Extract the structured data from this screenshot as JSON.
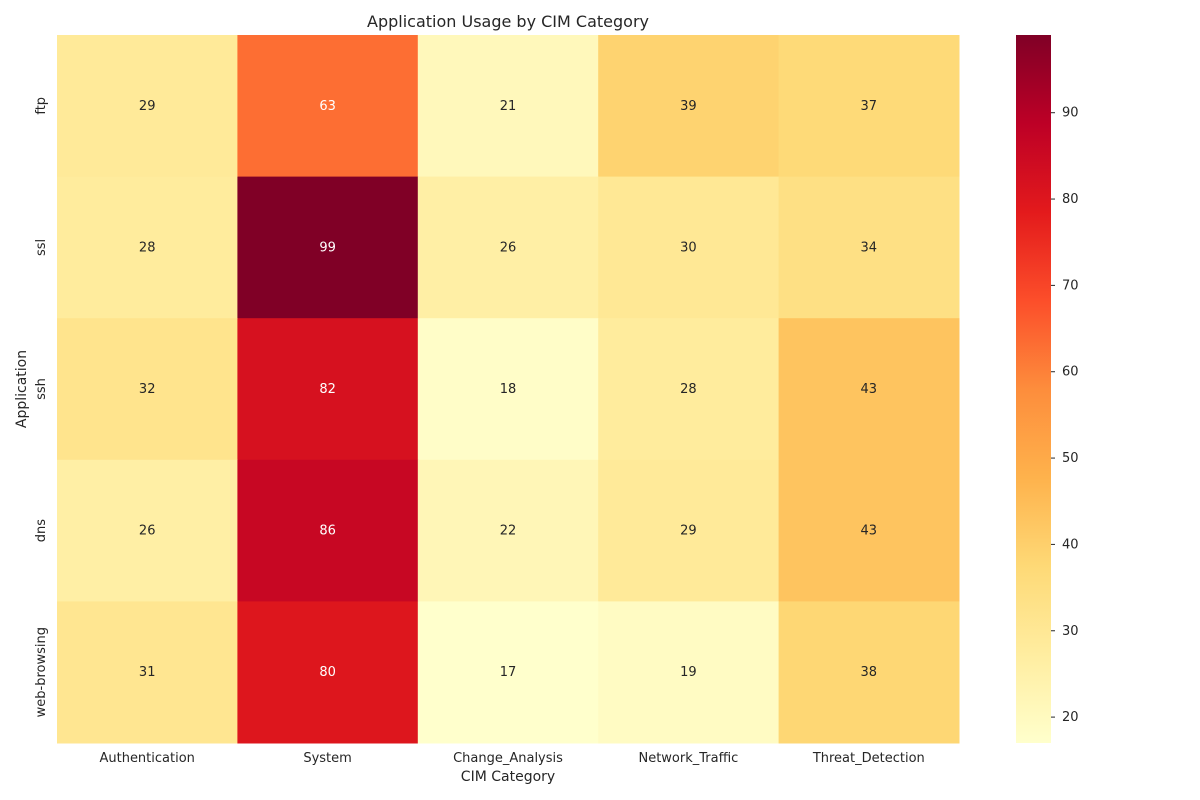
{
  "chart_data": {
    "type": "heatmap",
    "title": "Application Usage by CIM Category",
    "xlabel": "CIM Category",
    "ylabel": "Application",
    "x_categories": [
      "Authentication",
      "System",
      "Change_Analysis",
      "Network_Traffic",
      "Threat_Detection"
    ],
    "y_categories": [
      "ftp",
      "ssl",
      "ssh",
      "dns",
      "web-browsing"
    ],
    "values": [
      [
        29,
        63,
        21,
        39,
        37
      ],
      [
        28,
        99,
        26,
        30,
        34
      ],
      [
        32,
        82,
        18,
        28,
        43
      ],
      [
        26,
        86,
        22,
        29,
        43
      ],
      [
        31,
        80,
        17,
        19,
        38
      ]
    ],
    "annotations": true,
    "colormap": "YlOrRd",
    "vmin": 17,
    "vmax": 99,
    "colorbar": {
      "ticks": [
        20,
        30,
        40,
        50,
        60,
        70,
        80,
        90
      ]
    },
    "grid": false
  }
}
